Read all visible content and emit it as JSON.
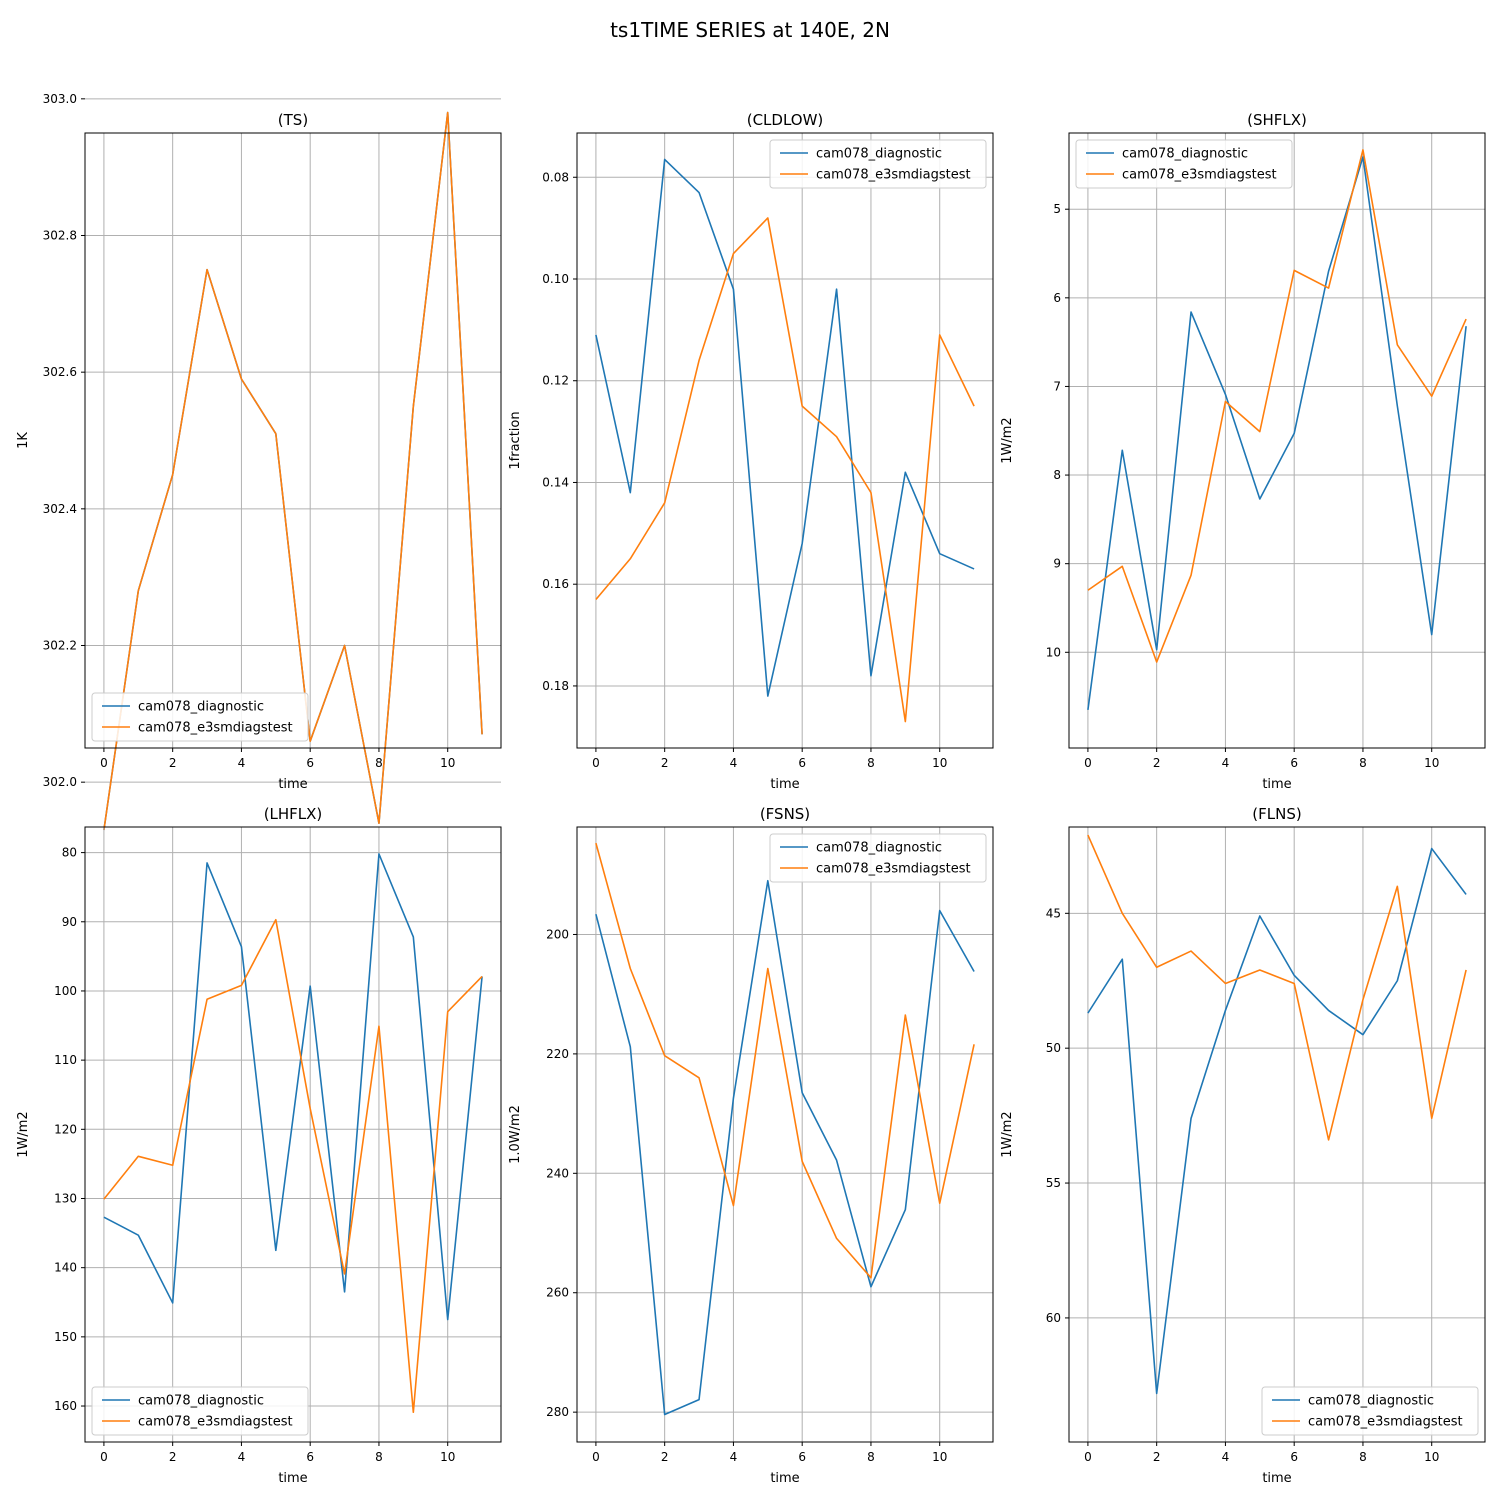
{
  "figure": {
    "title": "ts1TIME SERIES at 140E, 2N"
  },
  "colors": {
    "series0": "#1f77b4",
    "series1": "#ff7f0e",
    "grid": "#b0b0b0",
    "frame": "#000000",
    "legend_edge": "#cccccc"
  },
  "chart_data": [
    {
      "type": "line",
      "title": "(TS)",
      "xlabel": "time",
      "ylabel": "1K",
      "y_inverted": true,
      "ylim": [
        302.95,
        302.05
      ],
      "xlim": [
        -0.55,
        11.55
      ],
      "xticks": [
        0,
        2,
        4,
        6,
        8,
        10
      ],
      "yticks": [
        302.0,
        302.2,
        302.4,
        302.6,
        302.8,
        303.0
      ],
      "tick_decimals": 1,
      "grid": true,
      "legend_position": "lower-left",
      "x": [
        0,
        1,
        2,
        3,
        4,
        5,
        6,
        7,
        8,
        9,
        10,
        11
      ],
      "series": [
        {
          "name": "cam078_diagnostic",
          "values": [
            301.93,
            302.28,
            302.45,
            302.75,
            302.59,
            302.51,
            302.06,
            302.2,
            301.94,
            302.55,
            302.98,
            302.07
          ]
        },
        {
          "name": "cam078_e3smdiagstest",
          "values": [
            301.93,
            302.28,
            302.45,
            302.75,
            302.59,
            302.51,
            302.06,
            302.2,
            301.94,
            302.55,
            302.98,
            302.07
          ]
        }
      ]
    },
    {
      "type": "line",
      "title": "(CLDLOW)",
      "xlabel": "time",
      "ylabel": "1fraction",
      "y_inverted": true,
      "ylim": [
        0.0713,
        0.1922
      ],
      "xlim": [
        -0.55,
        11.55
      ],
      "xticks": [
        0,
        2,
        4,
        6,
        8,
        10
      ],
      "yticks": [
        0.08,
        0.1,
        0.12,
        0.14,
        0.16,
        0.18
      ],
      "tick_decimals": 2,
      "grid": true,
      "legend_position": "top-right",
      "x": [
        0,
        1,
        2,
        3,
        4,
        5,
        6,
        7,
        8,
        9,
        10,
        11
      ],
      "series": [
        {
          "name": "cam078_diagnostic",
          "values": [
            0.111,
            0.142,
            0.0765,
            0.083,
            0.102,
            0.182,
            0.152,
            0.102,
            0.178,
            0.138,
            0.154,
            0.157
          ]
        },
        {
          "name": "cam078_e3smdiagstest",
          "values": [
            0.163,
            0.155,
            0.144,
            0.116,
            0.095,
            0.088,
            0.125,
            0.131,
            0.142,
            0.187,
            0.111,
            0.125
          ]
        }
      ]
    },
    {
      "type": "line",
      "title": "(SHFLX)",
      "xlabel": "time",
      "ylabel": "1W/m2",
      "y_inverted": true,
      "ylim": [
        4.14,
        11.08
      ],
      "xlim": [
        -0.55,
        11.55
      ],
      "xticks": [
        0,
        2,
        4,
        6,
        8,
        10
      ],
      "yticks": [
        5,
        6,
        7,
        8,
        9,
        10
      ],
      "tick_decimals": 0,
      "grid": true,
      "legend_position": "top-left",
      "x": [
        0,
        1,
        2,
        3,
        4,
        5,
        6,
        7,
        8,
        9,
        10,
        11
      ],
      "series": [
        {
          "name": "cam078_diagnostic",
          "values": [
            10.65,
            7.72,
            9.97,
            6.16,
            7.09,
            8.27,
            7.53,
            5.7,
            4.41,
            7.22,
            9.8,
            6.32
          ]
        },
        {
          "name": "cam078_e3smdiagstest",
          "values": [
            9.3,
            9.03,
            10.11,
            9.13,
            7.17,
            7.51,
            5.69,
            5.89,
            4.33,
            6.53,
            7.11,
            6.24
          ]
        }
      ]
    },
    {
      "type": "line",
      "title": "(LHFLX)",
      "xlabel": "time",
      "ylabel": "1W/m2",
      "y_inverted": true,
      "ylim": [
        76.3,
        165.2
      ],
      "xlim": [
        -0.55,
        11.55
      ],
      "xticks": [
        0,
        2,
        4,
        6,
        8,
        10
      ],
      "yticks": [
        80,
        90,
        100,
        110,
        120,
        130,
        140,
        150,
        160
      ],
      "tick_decimals": 0,
      "grid": true,
      "legend_position": "lower-left",
      "x": [
        0,
        1,
        2,
        3,
        4,
        5,
        6,
        7,
        8,
        9,
        10,
        11
      ],
      "series": [
        {
          "name": "cam078_diagnostic",
          "values": [
            132.7,
            135.3,
            145.1,
            81.5,
            93.6,
            137.5,
            99.3,
            143.5,
            80.2,
            92.2,
            147.5,
            97.9
          ]
        },
        {
          "name": "cam078_e3smdiagstest",
          "values": [
            130.1,
            123.9,
            125.2,
            101.2,
            99.2,
            89.7,
            117.0,
            140.9,
            105.1,
            160.9,
            103.0,
            97.9
          ]
        }
      ]
    },
    {
      "type": "line",
      "title": "(FSNS)",
      "xlabel": "time",
      "ylabel": "1.0W/m2",
      "y_inverted": true,
      "ylim": [
        182.0,
        285.0
      ],
      "xlim": [
        -0.55,
        11.55
      ],
      "xticks": [
        0,
        2,
        4,
        6,
        8,
        10
      ],
      "yticks": [
        200,
        220,
        240,
        260,
        280
      ],
      "tick_decimals": 0,
      "grid": true,
      "legend_position": "top-right",
      "x": [
        0,
        1,
        2,
        3,
        4,
        5,
        6,
        7,
        8,
        9,
        10,
        11
      ],
      "series": [
        {
          "name": "cam078_diagnostic",
          "values": [
            196.6,
            218.8,
            280.4,
            277.9,
            227.4,
            191.0,
            226.5,
            237.8,
            259.0,
            246.1,
            196.0,
            206.2
          ]
        },
        {
          "name": "cam078_e3smdiagstest",
          "values": [
            184.7,
            205.7,
            220.3,
            224.0,
            245.4,
            205.7,
            238.0,
            250.9,
            257.5,
            213.5,
            245.0,
            218.4
          ]
        }
      ]
    },
    {
      "type": "line",
      "title": "(FLNS)",
      "xlabel": "time",
      "ylabel": "1W/m2",
      "y_inverted": true,
      "ylim": [
        41.8,
        64.6
      ],
      "xlim": [
        -0.55,
        11.55
      ],
      "xticks": [
        0,
        2,
        4,
        6,
        8,
        10
      ],
      "yticks": [
        45,
        50,
        55,
        60
      ],
      "tick_decimals": 0,
      "grid": true,
      "legend_position": "lower-right",
      "x": [
        0,
        1,
        2,
        3,
        4,
        5,
        6,
        7,
        8,
        9,
        10,
        11
      ],
      "series": [
        {
          "name": "cam078_diagnostic",
          "values": [
            48.7,
            46.7,
            62.8,
            52.6,
            48.6,
            45.1,
            47.3,
            48.6,
            49.5,
            47.5,
            42.6,
            44.3
          ]
        },
        {
          "name": "cam078_e3smdiagstest",
          "values": [
            42.1,
            45.0,
            47.0,
            46.4,
            47.6,
            47.1,
            47.6,
            53.4,
            48.2,
            44.0,
            52.6,
            47.1
          ]
        }
      ]
    }
  ]
}
